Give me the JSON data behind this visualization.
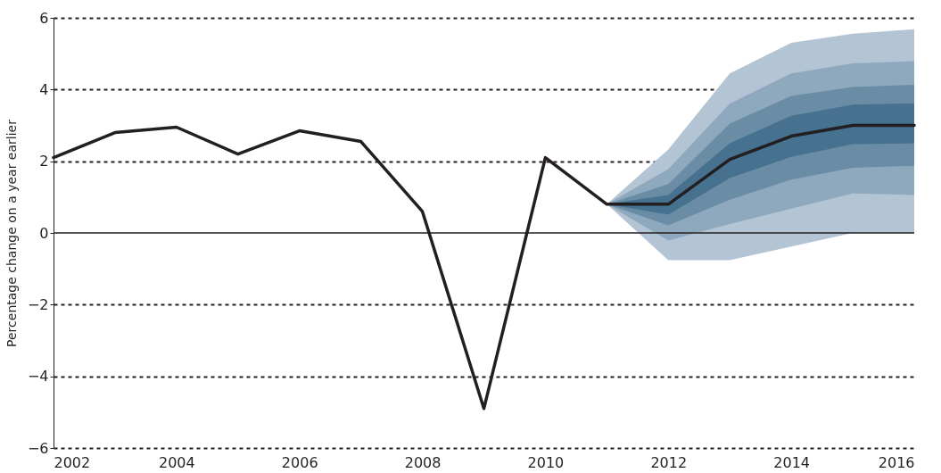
{
  "chart_data": {
    "type": "line",
    "ylabel": "Percentage change on a year earlier",
    "x": [
      2002,
      2003,
      2004,
      2005,
      2006,
      2007,
      2008,
      2009,
      2010,
      2011,
      2012,
      2013,
      2014,
      2015,
      2016
    ],
    "xlim": [
      2002,
      2016
    ],
    "xticks": [
      2002,
      2004,
      2006,
      2008,
      2010,
      2012,
      2014,
      2016
    ],
    "ylim": [
      -6,
      6
    ],
    "yticks": [
      -6,
      -4,
      -2,
      0,
      2,
      4,
      6
    ],
    "grid": "y",
    "legend": false,
    "ref_lines": [
      {
        "axis": "y",
        "value": 0,
        "color": "#231f20"
      }
    ],
    "series": [
      {
        "type": "area",
        "color": "#b3c4d4",
        "x": [
          2011,
          2012,
          2013,
          2014,
          2015,
          2016
        ],
        "values": [
          null,
          null,
          null,
          null,
          null,
          null
        ],
        "lower": [
          0.8,
          -0.76,
          -0.76,
          -0.38,
          0,
          0
        ],
        "upper": [
          0.8,
          2.33,
          4.45,
          5.3,
          5.56,
          5.68
        ]
      },
      {
        "type": "area",
        "color": "#8ea9be",
        "x": [
          2011,
          2012,
          2013,
          2014,
          2015,
          2016
        ],
        "values": [
          null,
          null,
          null,
          null,
          null,
          null
        ],
        "lower": [
          0.8,
          -0.21,
          0.25,
          0.68,
          1.1,
          1.06
        ],
        "upper": [
          0.8,
          1.78,
          3.61,
          4.45,
          4.73,
          4.79
        ]
      },
      {
        "type": "area",
        "color": "#6a8ca5",
        "x": [
          2011,
          2012,
          2013,
          2014,
          2015,
          2016
        ],
        "values": [
          null,
          null,
          null,
          null,
          null,
          null
        ],
        "lower": [
          0.8,
          0.21,
          0.93,
          1.49,
          1.82,
          1.87
        ],
        "upper": [
          0.8,
          1.36,
          3.05,
          3.82,
          4.07,
          4.13
        ]
      },
      {
        "type": "area",
        "color": "#46718f",
        "x": [
          2011,
          2012,
          2013,
          2014,
          2015,
          2016
        ],
        "values": [
          null,
          null,
          null,
          null,
          null,
          null
        ],
        "lower": [
          0.8,
          0.51,
          1.53,
          2.12,
          2.48,
          2.5
        ],
        "upper": [
          0.8,
          1.06,
          2.5,
          3.27,
          3.58,
          3.61
        ]
      },
      {
        "type": "line",
        "color": "#231f20",
        "values": [
          2.1,
          2.8,
          2.95,
          2.2,
          2.85,
          2.55,
          0.6,
          -4.9,
          2.1,
          0.8,
          0.8,
          2.05,
          2.7,
          3.0,
          3.0
        ]
      }
    ]
  }
}
